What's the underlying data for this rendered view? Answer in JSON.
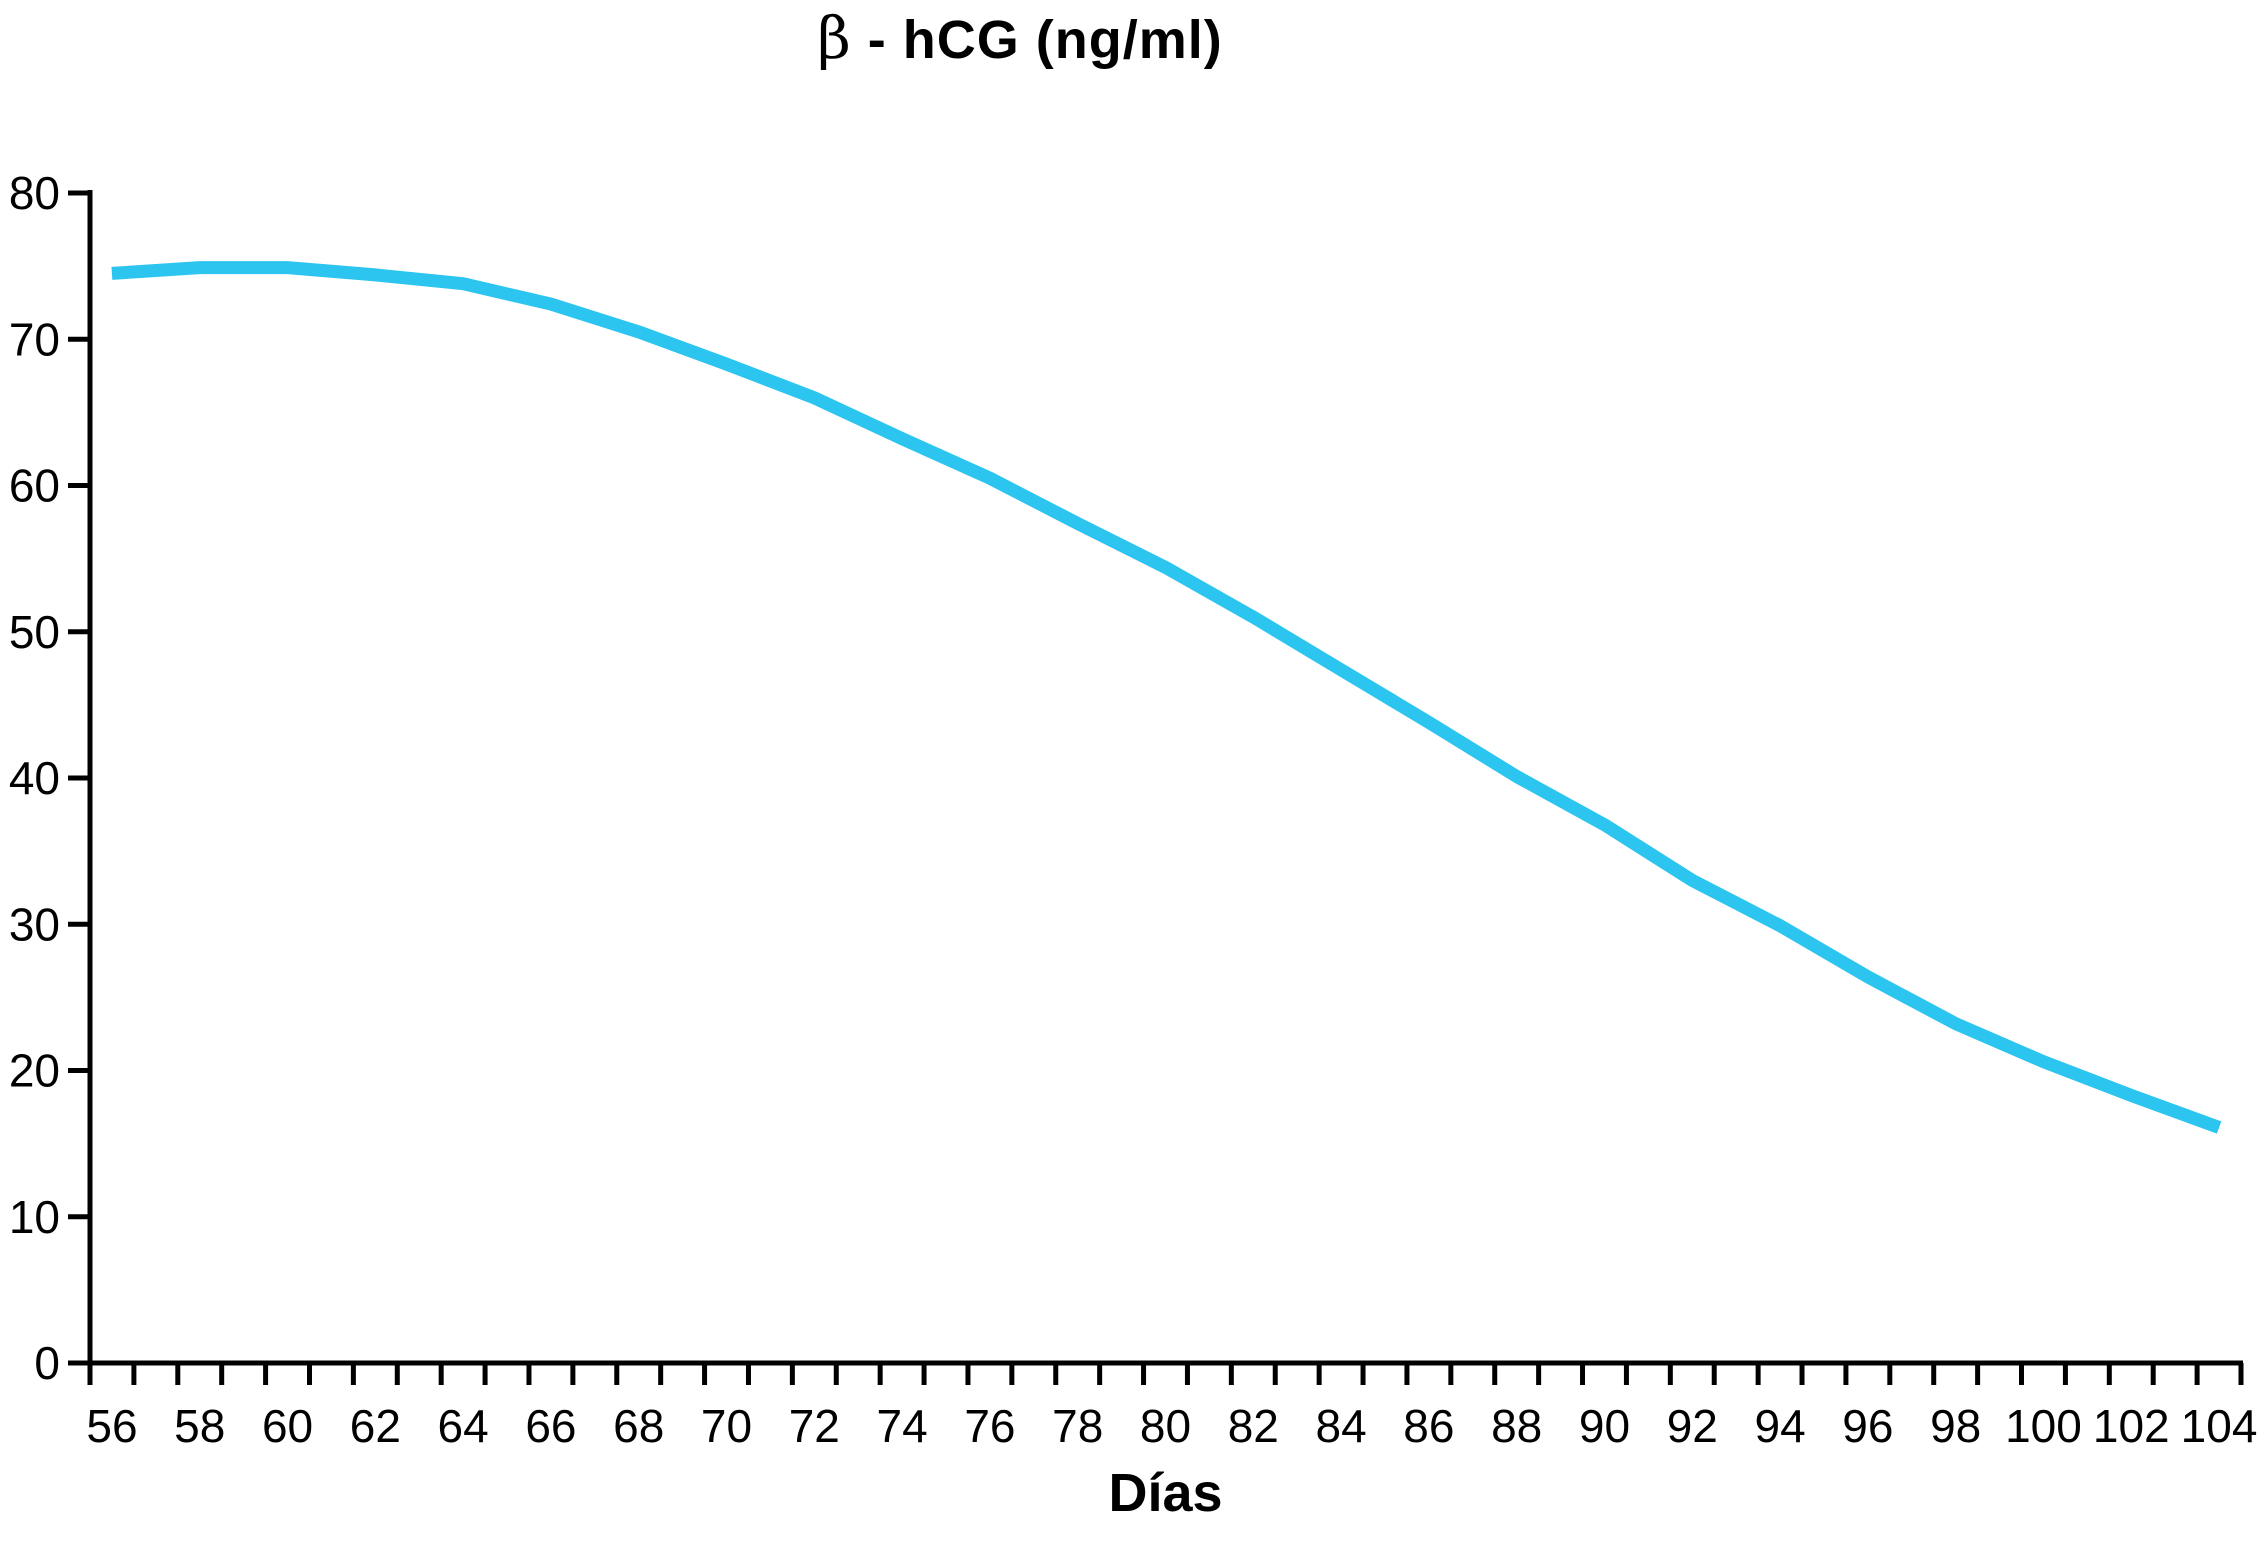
{
  "chart_data": {
    "type": "line",
    "title_beta": "β",
    "title_rest": " - hCG (ng/ml)",
    "title_full": "β - hCG (ng/ml)",
    "xlabel": "Días",
    "categories": [
      56,
      58,
      60,
      62,
      64,
      66,
      68,
      70,
      72,
      74,
      76,
      78,
      80,
      82,
      84,
      86,
      88,
      90,
      92,
      94,
      96,
      98,
      100,
      102,
      104
    ],
    "series": [
      {
        "name": "beta-hCG",
        "values": [
          74.5,
          74.9,
          74.9,
          74.4,
          73.8,
          72.4,
          70.5,
          68.3,
          66.0,
          63.2,
          60.5,
          57.4,
          54.4,
          51.0,
          47.4,
          43.8,
          40.1,
          36.8,
          33.0,
          29.9,
          26.4,
          23.2,
          20.6,
          18.3,
          16.1
        ]
      }
    ],
    "yticks": [
      0,
      10,
      20,
      30,
      40,
      50,
      60,
      70,
      80
    ],
    "ylim": [
      0,
      80
    ],
    "grid": false,
    "legend": "none",
    "line_color": "#2BC5F0",
    "axis_color": "#000000",
    "text_color": "#000000"
  }
}
